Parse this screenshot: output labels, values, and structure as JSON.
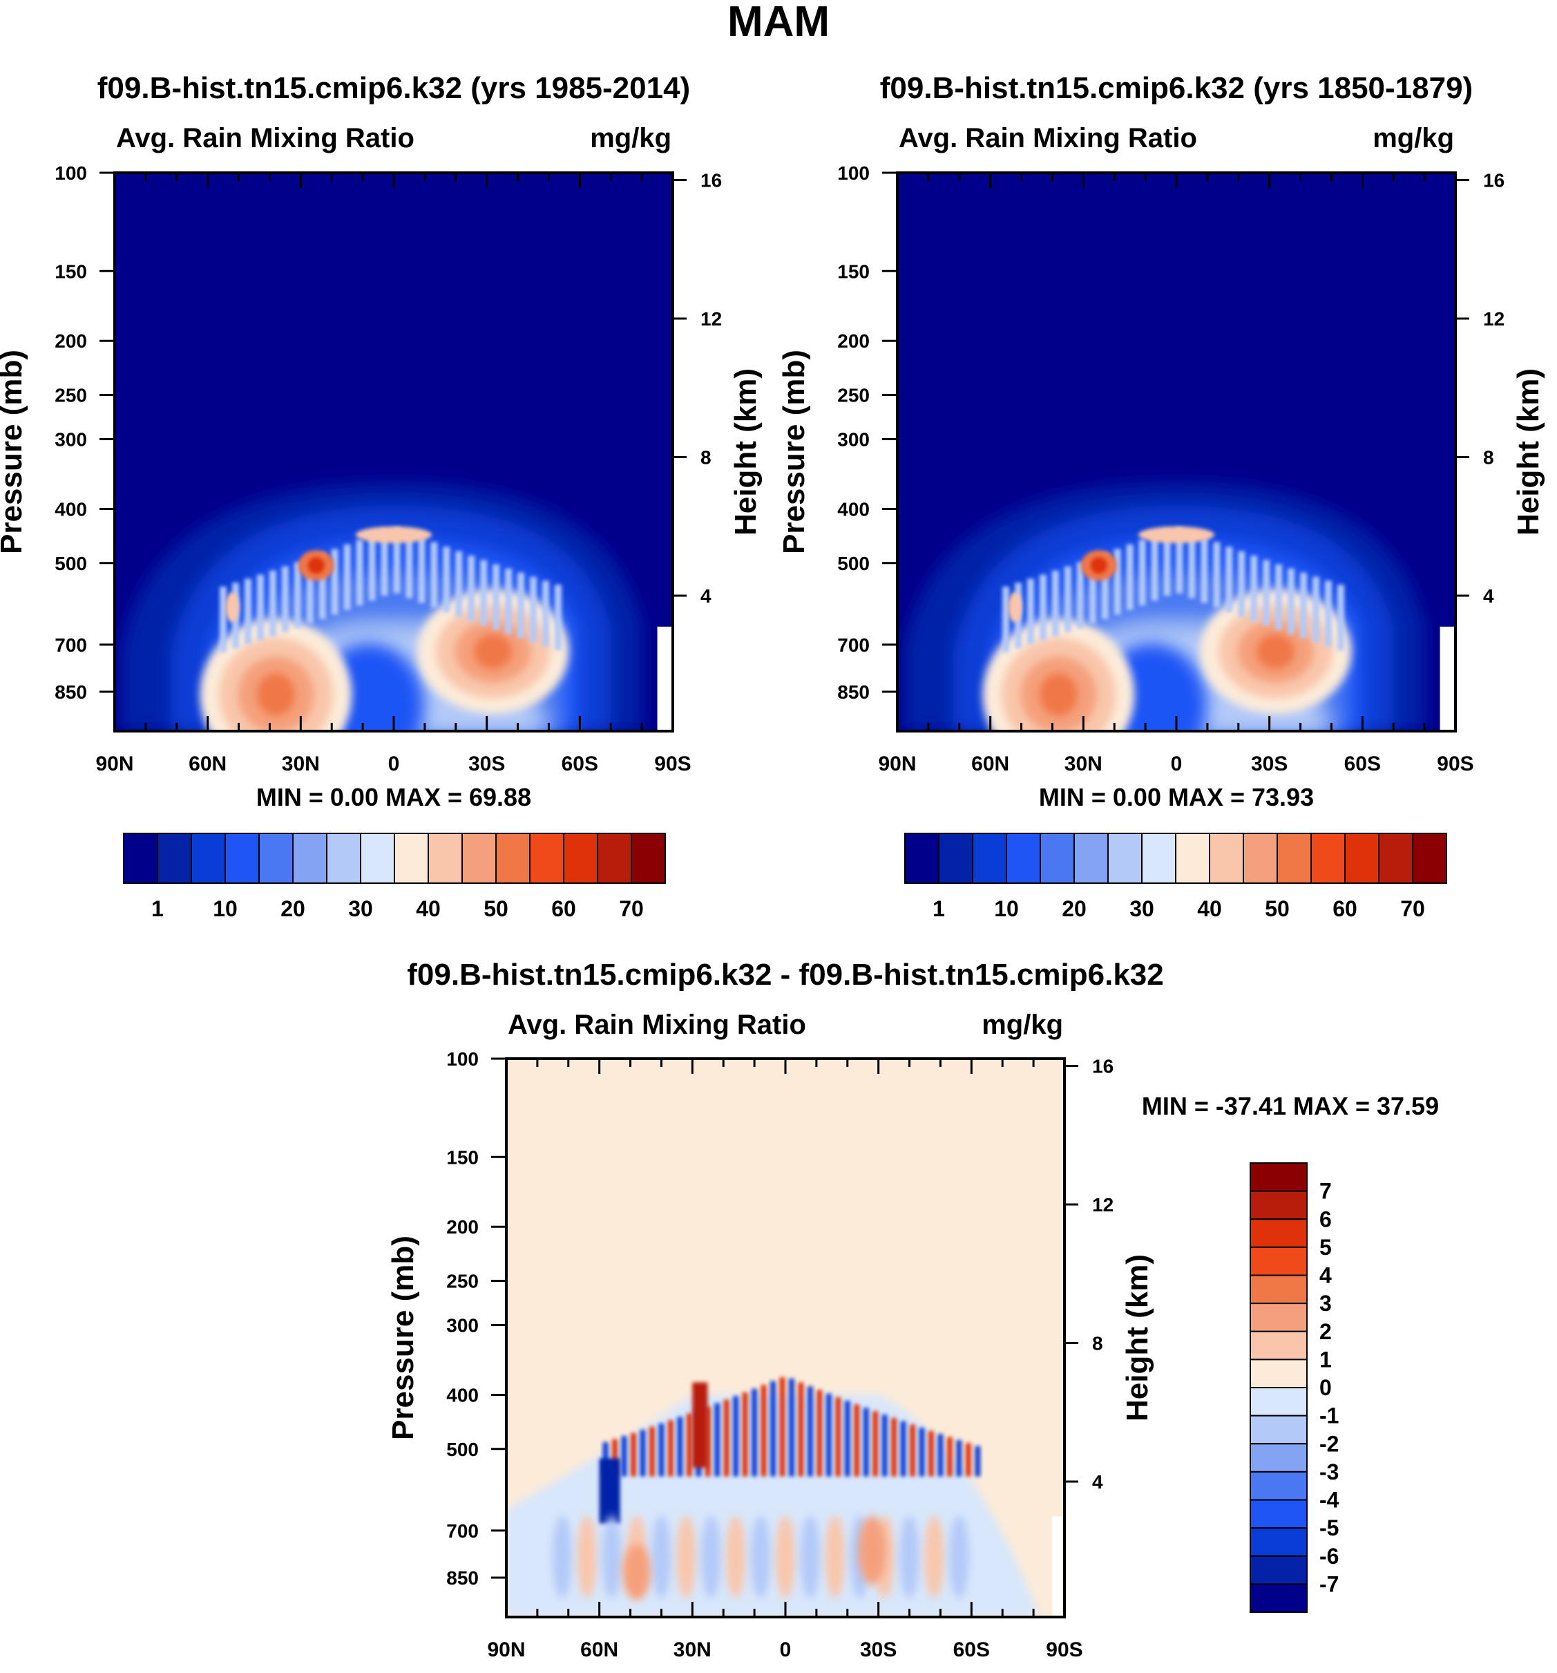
{
  "chart_data": {
    "title": "MAM",
    "lat_ticks": [
      "90N",
      "60N",
      "30N",
      "0",
      "30S",
      "60S",
      "90S"
    ],
    "pressure_ticks": [
      100,
      150,
      200,
      250,
      300,
      400,
      500,
      700,
      850
    ],
    "height_ticks": [
      16,
      12,
      8,
      4
    ],
    "left_axis_label": "Pressure (mb)",
    "right_axis_label": "Height (km)",
    "panels": [
      {
        "id": "top-left",
        "type": "heatmap",
        "title": "f09.B-hist.tn15.cmip6.k32 (yrs 1985-2014)",
        "left_string": "Avg. Rain Mixing Ratio",
        "right_string": "mg/kg",
        "stats": "MIN =   0.00  MAX =  69.88",
        "ylim_mb": [
          100,
          1000
        ],
        "xlim": [
          "90N",
          "90S"
        ]
      },
      {
        "id": "top-right",
        "type": "heatmap",
        "title": "f09.B-hist.tn15.cmip6.k32 (yrs 1850-1879)",
        "left_string": "Avg. Rain Mixing Ratio",
        "right_string": "mg/kg",
        "stats": "MIN =   0.00  MAX =  73.93",
        "ylim_mb": [
          100,
          1000
        ],
        "xlim": [
          "90N",
          "90S"
        ]
      },
      {
        "id": "bottom",
        "type": "heatmap",
        "title": "f09.B-hist.tn15.cmip6.k32 - f09.B-hist.tn15.cmip6.k32",
        "left_string": "Avg. Rain Mixing Ratio",
        "right_string": "mg/kg",
        "stats": "MIN = -37.41  MAX =  37.59",
        "ylim_mb": [
          100,
          1000
        ],
        "xlim": [
          "90N",
          "90S"
        ]
      }
    ],
    "colorbar_top": {
      "orientation": "horizontal",
      "colors": [
        "#00008b",
        "#0322a8",
        "#0a3dd5",
        "#1f55f5",
        "#4a78f2",
        "#82a4f2",
        "#b3c9f8",
        "#d8e7fb",
        "#fcebd9",
        "#f9c6ab",
        "#f5a07c",
        "#f07746",
        "#f04a1a",
        "#df3208",
        "#b71d0a",
        "#8b0000"
      ],
      "labels": [
        "1",
        "10",
        "20",
        "30",
        "40",
        "50",
        "60",
        "70"
      ]
    },
    "colorbar_diff": {
      "orientation": "vertical",
      "colors": [
        "#8b0000",
        "#b71d0a",
        "#df3208",
        "#f04a1a",
        "#f07746",
        "#f5a07c",
        "#f9c6ab",
        "#fcebd9",
        "#d8e7fb",
        "#b3c9f8",
        "#82a4f2",
        "#4a78f2",
        "#1f55f5",
        "#0a3dd5",
        "#0322a8",
        "#00008b"
      ],
      "labels": [
        "7",
        "6",
        "5",
        "4",
        "3",
        "2",
        "1",
        "0",
        "-1",
        "-2",
        "-3",
        "-4",
        "-5",
        "-6",
        "-7"
      ]
    }
  }
}
